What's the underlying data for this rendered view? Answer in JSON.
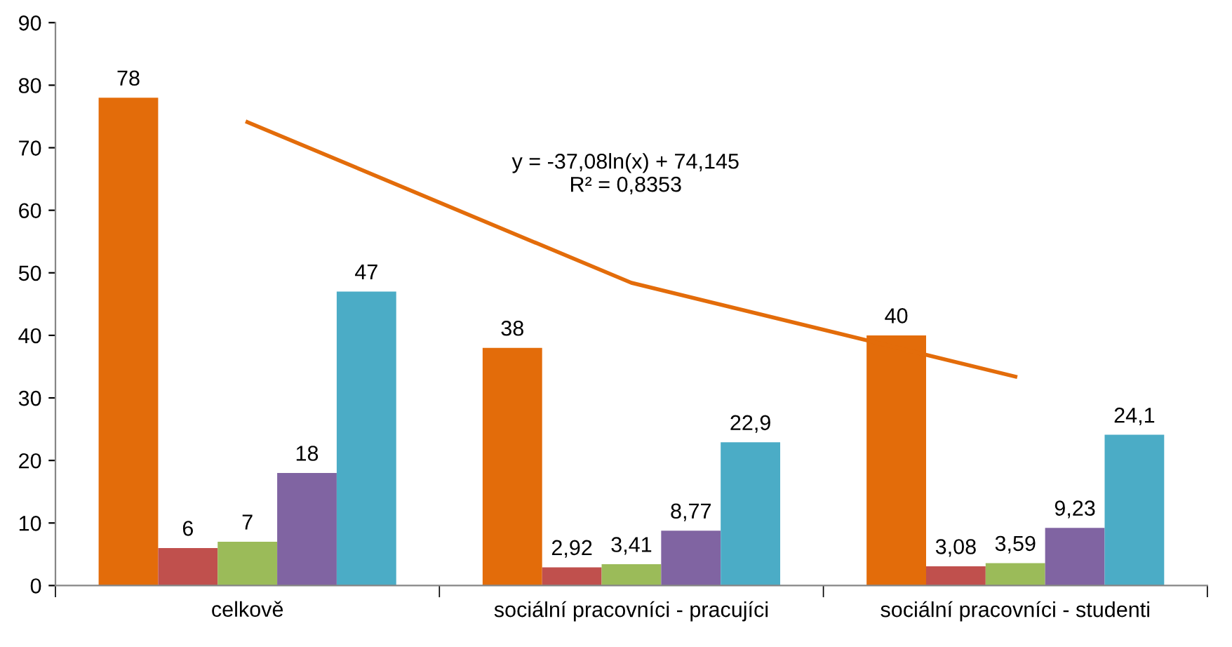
{
  "chart_data": {
    "type": "bar",
    "categories": [
      "celkově",
      "sociální pracovníci - pracujíci",
      "sociální pracovníci - studenti"
    ],
    "series": [
      {
        "color": "#e36c0a",
        "values": [
          78,
          38,
          40
        ],
        "value_labels": [
          "78",
          "38",
          "40"
        ]
      },
      {
        "color": "#c0504d",
        "values": [
          6,
          2.92,
          3.08
        ],
        "value_labels": [
          "6",
          "2,92",
          "3,08"
        ]
      },
      {
        "color": "#9bbb59",
        "values": [
          7,
          3.41,
          3.59
        ],
        "value_labels": [
          "7",
          "3,41",
          "3,59"
        ]
      },
      {
        "color": "#8064a2",
        "values": [
          18,
          8.77,
          9.23
        ],
        "value_labels": [
          "18",
          "8,77",
          "9,23"
        ]
      },
      {
        "color": "#4bacc6",
        "values": [
          47,
          22.9,
          24.1
        ],
        "value_labels": [
          "47",
          "22,9",
          "24,1"
        ]
      },
      {
        "type": "line",
        "color": "#e36c0a",
        "values": [
          74.1,
          48.4,
          33.4
        ]
      }
    ],
    "annotations": [
      "y = -37,08ln(x) + 74,145\nR² = 0,8353"
    ],
    "ylim": [
      0,
      90
    ],
    "yticks": [
      0,
      10,
      20,
      30,
      40,
      50,
      60,
      70,
      80,
      90
    ],
    "grid": false,
    "legend": false
  }
}
